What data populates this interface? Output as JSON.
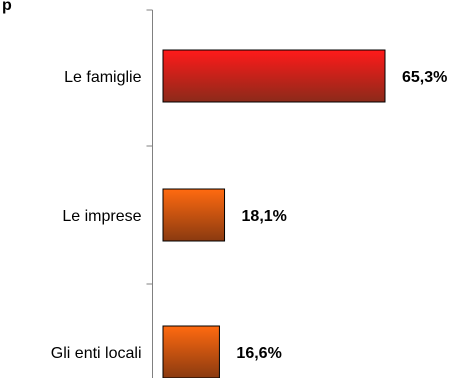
{
  "chart_data": {
    "type": "bar",
    "orientation": "horizontal",
    "title": "",
    "xlabel": "",
    "ylabel": "",
    "categories": [
      "Le famiglie",
      "Le imprese",
      "Gli enti locali"
    ],
    "values": [
      65.3,
      18.1,
      16.6
    ],
    "value_labels": [
      "65,3%",
      "18,1%",
      "16,6%"
    ],
    "xlim": [
      0,
      70
    ],
    "grid": false,
    "legend": "none",
    "colors": {
      "first_bar_top": "#ff1a1a",
      "first_bar_bottom": "#8b2a1a",
      "other_bar_top": "#ff6a10",
      "other_bar_bottom": "#8a3a10",
      "axis": "#808080"
    }
  }
}
